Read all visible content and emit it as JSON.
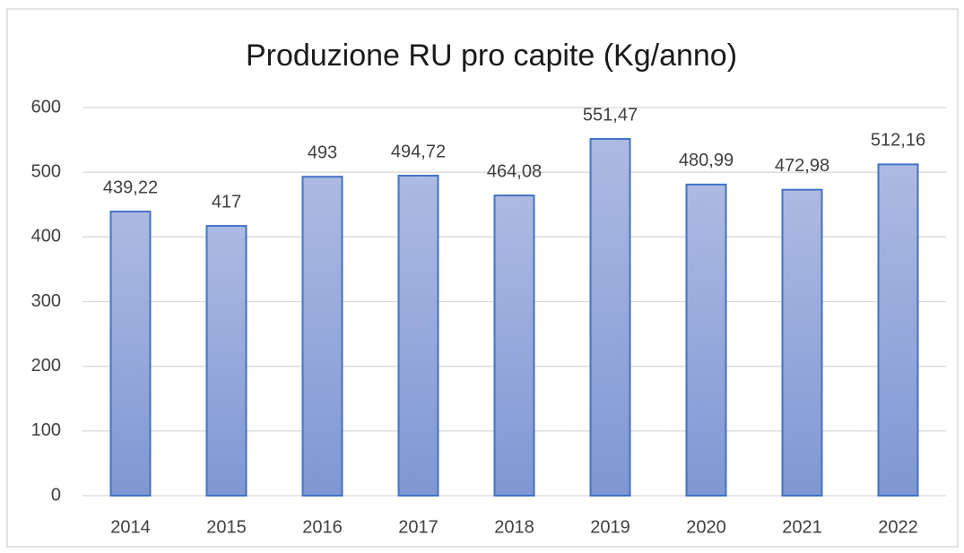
{
  "chart_data": {
    "type": "bar",
    "title": "Produzione RU pro capite (Kg/anno)",
    "categories": [
      "2014",
      "2015",
      "2016",
      "2017",
      "2018",
      "2019",
      "2020",
      "2021",
      "2022"
    ],
    "values": [
      439.22,
      417,
      493,
      494.72,
      464.08,
      551.47,
      480.99,
      472.98,
      512.16
    ],
    "value_labels": [
      "439,22",
      "417",
      "493",
      "494,72",
      "464,08",
      "551,47",
      "480,99",
      "472,98",
      "512,16"
    ],
    "color": "#4472c4",
    "ylim": [
      0,
      600
    ],
    "yticks": [
      0,
      100,
      200,
      300,
      400,
      500,
      600
    ],
    "grid": true
  }
}
